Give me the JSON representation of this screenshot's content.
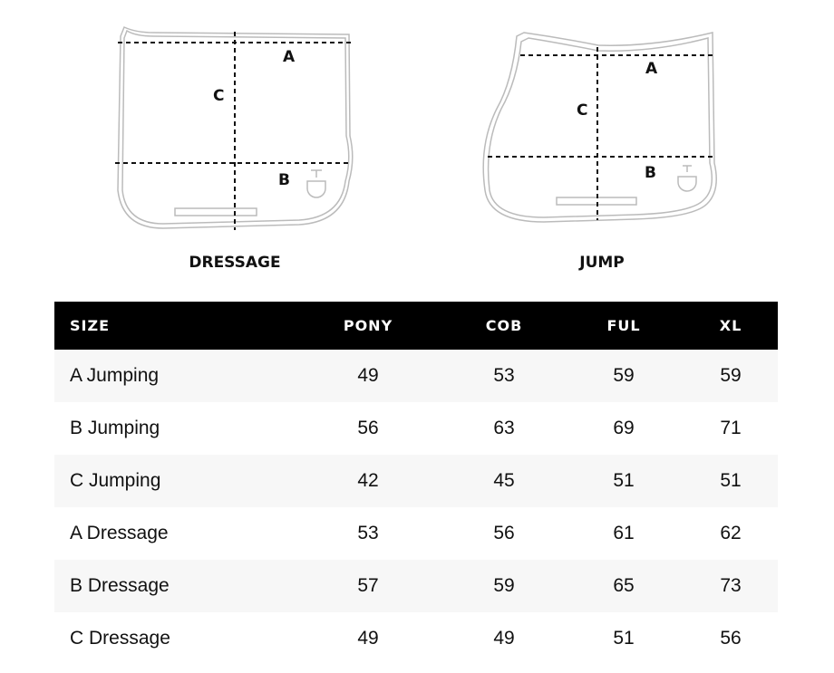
{
  "diagrams": [
    {
      "caption": "DRESSAGE",
      "labels": {
        "a": "A",
        "b": "B",
        "c": "C"
      }
    },
    {
      "caption": "JUMP",
      "labels": {
        "a": "A",
        "b": "B",
        "c": "C"
      }
    }
  ],
  "table": {
    "headers": [
      "SIZE",
      "PONY",
      "COB",
      "FUL",
      "XL"
    ],
    "rows": [
      {
        "label": "A Jumping",
        "values": [
          "49",
          "53",
          "59",
          "59"
        ]
      },
      {
        "label": "B Jumping",
        "values": [
          "56",
          "63",
          "69",
          "71"
        ]
      },
      {
        "label": "C Jumping",
        "values": [
          "42",
          "45",
          "51",
          "51"
        ]
      },
      {
        "label": "A Dressage",
        "values": [
          "53",
          "56",
          "61",
          "62"
        ]
      },
      {
        "label": "B Dressage",
        "values": [
          "57",
          "59",
          "65",
          "73"
        ]
      },
      {
        "label": "C Dressage",
        "values": [
          "49",
          "49",
          "51",
          "56"
        ]
      }
    ]
  },
  "colors": {
    "header_bg": "#000000",
    "header_text": "#ffffff",
    "alt_row": "#f7f7f7",
    "outline": "#bbbbbb"
  }
}
